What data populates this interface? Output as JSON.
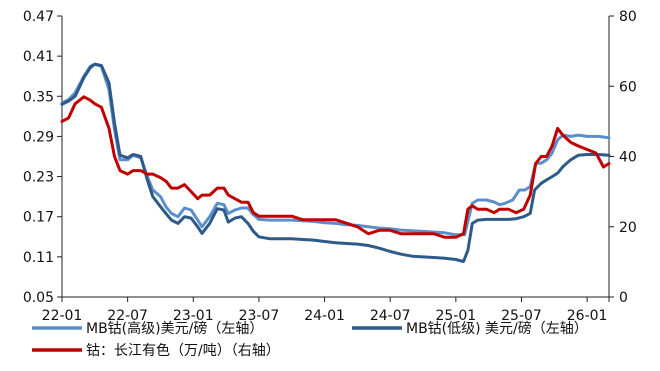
{
  "chart_data": {
    "type": "line",
    "title": "",
    "xlabel": "",
    "ylabel_left": "",
    "ylabel_right": "",
    "x_ticks": [
      "22-01",
      "22-07",
      "23-01",
      "23-07",
      "24-01",
      "24-07",
      "25-01",
      "25-07",
      "26-01"
    ],
    "y_left": {
      "min": 0.05,
      "max": 0.47,
      "ticks": [
        "0.05",
        "0.11",
        "0.17",
        "0.23",
        "0.29",
        "0.35",
        "0.41",
        "0.47"
      ]
    },
    "y_right": {
      "min": 0,
      "max": 80,
      "ticks": [
        "0",
        "20",
        "40",
        "60",
        "80"
      ]
    },
    "x_range": [
      0,
      50
    ],
    "grid": false,
    "legend_position": "bottom",
    "series": [
      {
        "name": "MB钴(高级)美元/磅（左轴）",
        "axis": "left",
        "color": "#5b8fcb",
        "points": [
          [
            0,
            0.34
          ],
          [
            0.6,
            0.345
          ],
          [
            1.2,
            0.355
          ],
          [
            2,
            0.38
          ],
          [
            2.6,
            0.395
          ],
          [
            3,
            0.398
          ],
          [
            3.6,
            0.395
          ],
          [
            4.3,
            0.36
          ],
          [
            4.8,
            0.3
          ],
          [
            5.3,
            0.255
          ],
          [
            6,
            0.255
          ],
          [
            6.5,
            0.262
          ],
          [
            7.2,
            0.258
          ],
          [
            7.8,
            0.23
          ],
          [
            8.3,
            0.21
          ],
          [
            9,
            0.2
          ],
          [
            9.5,
            0.185
          ],
          [
            10,
            0.175
          ],
          [
            10.6,
            0.17
          ],
          [
            11.2,
            0.183
          ],
          [
            11.8,
            0.18
          ],
          [
            12.4,
            0.165
          ],
          [
            12.8,
            0.155
          ],
          [
            13.5,
            0.17
          ],
          [
            14.2,
            0.19
          ],
          [
            14.8,
            0.188
          ],
          [
            15.2,
            0.175
          ],
          [
            15.8,
            0.18
          ],
          [
            16.4,
            0.183
          ],
          [
            17,
            0.183
          ],
          [
            17.5,
            0.173
          ],
          [
            18,
            0.166
          ],
          [
            19,
            0.165
          ],
          [
            20,
            0.165
          ],
          [
            21,
            0.165
          ],
          [
            22,
            0.164
          ],
          [
            23,
            0.163
          ],
          [
            24,
            0.161
          ],
          [
            25,
            0.16
          ],
          [
            26,
            0.158
          ],
          [
            27,
            0.157
          ],
          [
            28,
            0.155
          ],
          [
            29,
            0.153
          ],
          [
            30,
            0.152
          ],
          [
            31,
            0.15
          ],
          [
            32,
            0.149
          ],
          [
            33,
            0.148
          ],
          [
            34,
            0.147
          ],
          [
            35,
            0.146
          ],
          [
            36,
            0.143
          ],
          [
            36.8,
            0.143
          ],
          [
            37.2,
            0.17
          ],
          [
            37.5,
            0.19
          ],
          [
            38,
            0.195
          ],
          [
            38.8,
            0.195
          ],
          [
            39.5,
            0.192
          ],
          [
            40,
            0.188
          ],
          [
            40.5,
            0.19
          ],
          [
            41.2,
            0.195
          ],
          [
            41.8,
            0.21
          ],
          [
            42.3,
            0.21
          ],
          [
            42.8,
            0.215
          ],
          [
            43.3,
            0.25
          ],
          [
            43.8,
            0.25
          ],
          [
            44.3,
            0.255
          ],
          [
            44.8,
            0.265
          ],
          [
            45.3,
            0.285
          ],
          [
            45.8,
            0.292
          ],
          [
            46.5,
            0.29
          ],
          [
            47.2,
            0.292
          ],
          [
            48,
            0.29
          ],
          [
            49,
            0.29
          ],
          [
            50,
            0.288
          ]
        ]
      },
      {
        "name": "MB钴(低级) 美元/磅（左轴）",
        "axis": "left",
        "color": "#2e5a8a",
        "points": [
          [
            0,
            0.338
          ],
          [
            0.6,
            0.343
          ],
          [
            1.2,
            0.35
          ],
          [
            2,
            0.378
          ],
          [
            2.6,
            0.393
          ],
          [
            3,
            0.398
          ],
          [
            3.6,
            0.396
          ],
          [
            4.3,
            0.37
          ],
          [
            4.8,
            0.31
          ],
          [
            5.3,
            0.262
          ],
          [
            6,
            0.258
          ],
          [
            6.5,
            0.263
          ],
          [
            7.2,
            0.26
          ],
          [
            7.8,
            0.225
          ],
          [
            8.3,
            0.2
          ],
          [
            9,
            0.185
          ],
          [
            9.5,
            0.175
          ],
          [
            10,
            0.165
          ],
          [
            10.6,
            0.16
          ],
          [
            11.2,
            0.17
          ],
          [
            11.8,
            0.168
          ],
          [
            12.4,
            0.155
          ],
          [
            12.8,
            0.145
          ],
          [
            13.5,
            0.16
          ],
          [
            14.2,
            0.182
          ],
          [
            14.8,
            0.18
          ],
          [
            15.2,
            0.162
          ],
          [
            15.8,
            0.168
          ],
          [
            16.4,
            0.17
          ],
          [
            17,
            0.16
          ],
          [
            17.5,
            0.148
          ],
          [
            18,
            0.14
          ],
          [
            19,
            0.137
          ],
          [
            20,
            0.137
          ],
          [
            21,
            0.137
          ],
          [
            22,
            0.136
          ],
          [
            23,
            0.135
          ],
          [
            24,
            0.133
          ],
          [
            25,
            0.131
          ],
          [
            26,
            0.13
          ],
          [
            27,
            0.129
          ],
          [
            28,
            0.127
          ],
          [
            29,
            0.123
          ],
          [
            30,
            0.118
          ],
          [
            31,
            0.114
          ],
          [
            32,
            0.111
          ],
          [
            33,
            0.11
          ],
          [
            34,
            0.109
          ],
          [
            35,
            0.108
          ],
          [
            36,
            0.106
          ],
          [
            36.7,
            0.103
          ],
          [
            37.1,
            0.12
          ],
          [
            37.5,
            0.16
          ],
          [
            38,
            0.165
          ],
          [
            38.8,
            0.166
          ],
          [
            39.5,
            0.166
          ],
          [
            40,
            0.166
          ],
          [
            40.8,
            0.166
          ],
          [
            41.5,
            0.167
          ],
          [
            42.2,
            0.17
          ],
          [
            42.8,
            0.175
          ],
          [
            43.2,
            0.21
          ],
          [
            43.8,
            0.22
          ],
          [
            44.3,
            0.225
          ],
          [
            44.8,
            0.23
          ],
          [
            45.3,
            0.235
          ],
          [
            45.8,
            0.245
          ],
          [
            46.5,
            0.255
          ],
          [
            47.2,
            0.262
          ],
          [
            48,
            0.263
          ],
          [
            49,
            0.263
          ],
          [
            50,
            0.262
          ]
        ]
      },
      {
        "name": "钴：长江有色（万/吨）（右轴）",
        "axis": "right",
        "color": "#c00000",
        "points": [
          [
            0,
            50
          ],
          [
            0.6,
            51
          ],
          [
            1.2,
            55
          ],
          [
            2,
            57
          ],
          [
            2.6,
            56
          ],
          [
            3,
            55
          ],
          [
            3.6,
            54
          ],
          [
            4.3,
            48
          ],
          [
            4.8,
            40
          ],
          [
            5.3,
            36
          ],
          [
            6,
            35
          ],
          [
            6.5,
            36
          ],
          [
            7.2,
            36
          ],
          [
            7.8,
            35
          ],
          [
            8.3,
            35
          ],
          [
            9,
            34
          ],
          [
            9.5,
            33
          ],
          [
            10,
            31
          ],
          [
            10.6,
            31
          ],
          [
            11.2,
            32
          ],
          [
            11.8,
            30
          ],
          [
            12.4,
            28
          ],
          [
            12.8,
            29
          ],
          [
            13.5,
            29
          ],
          [
            14.2,
            31
          ],
          [
            14.8,
            31
          ],
          [
            15.2,
            29
          ],
          [
            15.8,
            28
          ],
          [
            16.4,
            27
          ],
          [
            17,
            27
          ],
          [
            17.5,
            24
          ],
          [
            18,
            23
          ],
          [
            19,
            23
          ],
          [
            20,
            23
          ],
          [
            21,
            23
          ],
          [
            22,
            22
          ],
          [
            23,
            22
          ],
          [
            24,
            22
          ],
          [
            25,
            22
          ],
          [
            26,
            21
          ],
          [
            27,
            20
          ],
          [
            28,
            18
          ],
          [
            29,
            19
          ],
          [
            30,
            19
          ],
          [
            31,
            18
          ],
          [
            32,
            18
          ],
          [
            33,
            18
          ],
          [
            34,
            18
          ],
          [
            35,
            17
          ],
          [
            36,
            17
          ],
          [
            36.7,
            18
          ],
          [
            37.1,
            25
          ],
          [
            37.5,
            26
          ],
          [
            38,
            25
          ],
          [
            38.8,
            25
          ],
          [
            39.5,
            24
          ],
          [
            40,
            25
          ],
          [
            40.8,
            25
          ],
          [
            41.5,
            24
          ],
          [
            42.2,
            25
          ],
          [
            42.8,
            29
          ],
          [
            43.3,
            38
          ],
          [
            43.8,
            40
          ],
          [
            44.3,
            40
          ],
          [
            44.8,
            43
          ],
          [
            45.3,
            48
          ],
          [
            45.8,
            46
          ],
          [
            46.5,
            44
          ],
          [
            47.2,
            43
          ],
          [
            48,
            42
          ],
          [
            48.8,
            41
          ],
          [
            49.5,
            37
          ],
          [
            50,
            38
          ]
        ]
      }
    ]
  }
}
